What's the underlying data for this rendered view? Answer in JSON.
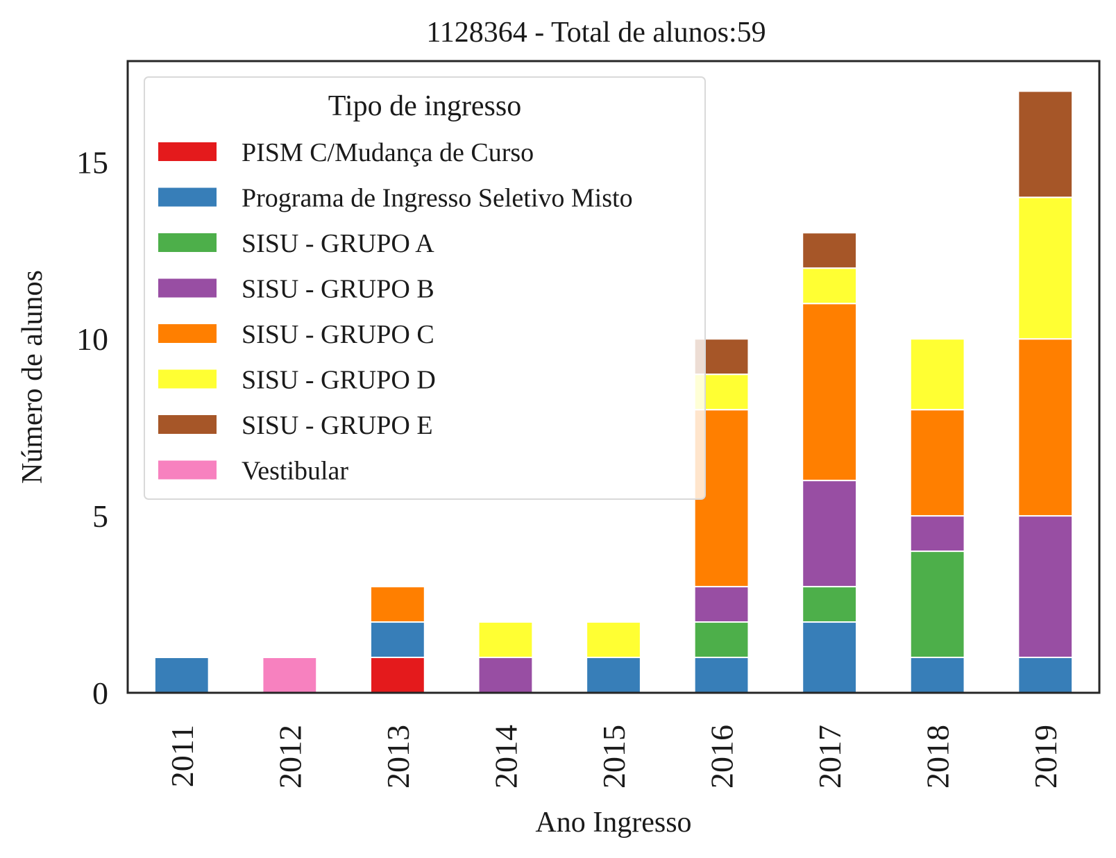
{
  "chart_data": {
    "type": "bar",
    "stacked": true,
    "title": "1128364 - Total de alunos:59",
    "xlabel": "Ano Ingresso",
    "ylabel": "Número de alunos",
    "ylim": [
      0,
      17.85
    ],
    "yticks": [
      0,
      5,
      10,
      15
    ],
    "grid": false,
    "legend_title": "Tipo de ingresso",
    "legend_position": "top-left",
    "categories": [
      "2011",
      "2012",
      "2013",
      "2014",
      "2015",
      "2016",
      "2017",
      "2018",
      "2019"
    ],
    "series": [
      {
        "name": "PISM C/Mudança de Curso",
        "color": "#e41a1c",
        "values": [
          0,
          0,
          1,
          0,
          0,
          0,
          0,
          0,
          0
        ]
      },
      {
        "name": "Programa de Ingresso Seletivo Misto",
        "color": "#377eb8",
        "values": [
          1,
          0,
          1,
          0,
          1,
          1,
          2,
          1,
          1
        ]
      },
      {
        "name": "SISU - GRUPO A",
        "color": "#4daf4a",
        "values": [
          0,
          0,
          0,
          0,
          0,
          1,
          1,
          3,
          0
        ]
      },
      {
        "name": "SISU - GRUPO B",
        "color": "#984ea3",
        "values": [
          0,
          0,
          0,
          1,
          0,
          1,
          3,
          1,
          4
        ]
      },
      {
        "name": "SISU - GRUPO C",
        "color": "#ff7f00",
        "values": [
          0,
          0,
          1,
          0,
          0,
          5,
          5,
          3,
          5
        ]
      },
      {
        "name": "SISU - GRUPO D",
        "color": "#ffff33",
        "values": [
          0,
          0,
          0,
          1,
          1,
          1,
          1,
          2,
          4
        ]
      },
      {
        "name": "SISU - GRUPO E",
        "color": "#a65628",
        "values": [
          0,
          0,
          0,
          0,
          0,
          1,
          1,
          0,
          3
        ]
      },
      {
        "name": "Vestibular",
        "color": "#f781bf",
        "values": [
          0,
          1,
          0,
          0,
          0,
          0,
          0,
          0,
          0
        ]
      }
    ]
  }
}
